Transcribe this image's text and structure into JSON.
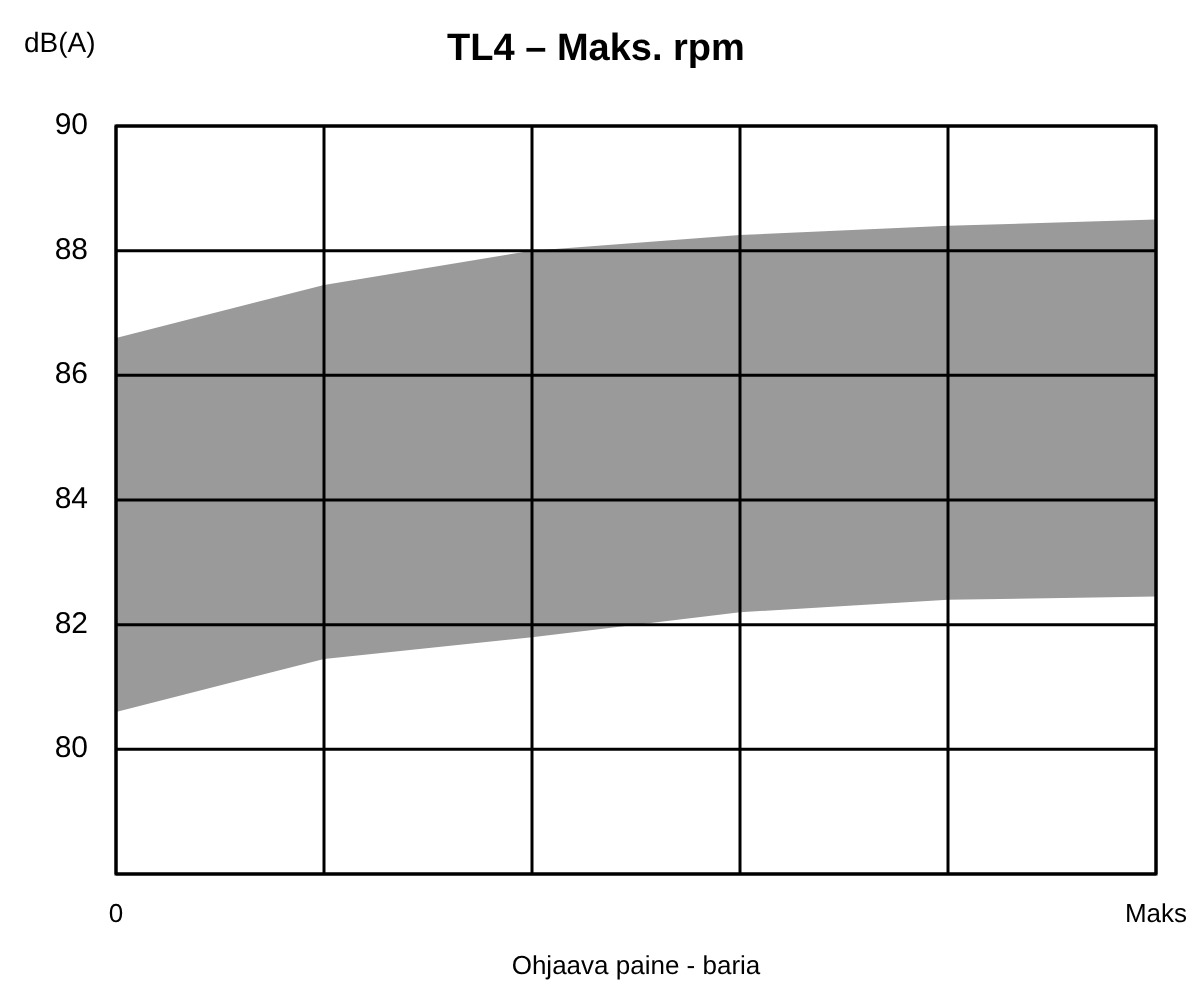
{
  "chart_data": {
    "type": "area",
    "title": "TL4 – Maks. rpm",
    "xlabel": "Ohjaava paine - baria",
    "ylabel": "dB(A)",
    "categories": [
      "0",
      null,
      null,
      null,
      null,
      "Maks"
    ],
    "series": [
      {
        "color": "#9a9a9a",
        "values": [
          86.6,
          87.45,
          88.0,
          88.25,
          88.4,
          88.5
        ]
      },
      {
        "color": "#ffffff",
        "values": [
          80.6,
          81.45,
          81.8,
          82.2,
          82.4,
          82.45
        ]
      }
    ],
    "ylim": [
      78,
      90
    ],
    "yticks": [
      {
        "value": 78,
        "label": null
      },
      80,
      82,
      84,
      86,
      88,
      90
    ],
    "grid": true
  }
}
